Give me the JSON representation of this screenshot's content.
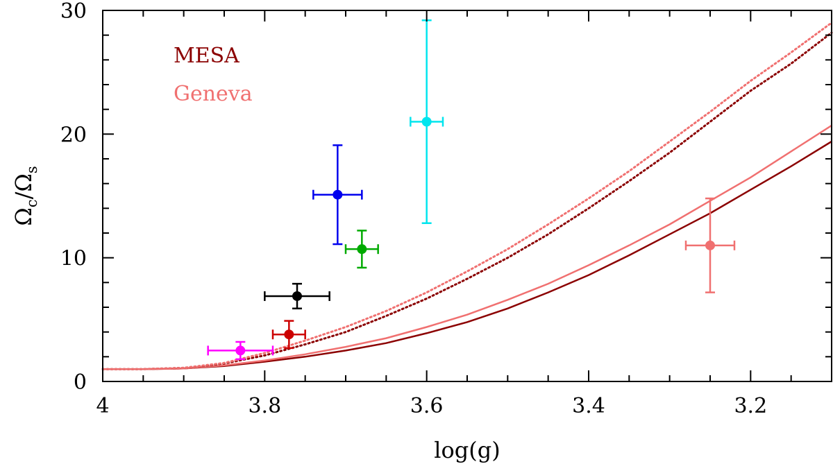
{
  "chart_data": {
    "type": "scatter",
    "title": "",
    "xlabel": "log(g)",
    "ylabel": {
      "base": "Ω",
      "sub1": "c",
      "slash": "/",
      "base2": "Ω",
      "sub2": "s"
    },
    "xlim": [
      4.0,
      3.1
    ],
    "ylim": [
      0,
      30
    ],
    "x_ticks": [
      4,
      3.8,
      3.6,
      3.4,
      3.2
    ],
    "x_tick_labels": [
      "4",
      "3.8",
      "3.6",
      "3.4",
      "3.2"
    ],
    "y_ticks": [
      0,
      10,
      20,
      30
    ],
    "y_tick_labels": [
      "0",
      "10",
      "20",
      "30"
    ],
    "legend": [
      {
        "name": "MESA",
        "color": "#8B0000"
      },
      {
        "name": "Geneva",
        "color": "#F07070"
      }
    ],
    "series": [
      {
        "name": "MESA",
        "style": "solid",
        "color": "#8B0000",
        "x": [
          4.0,
          3.95,
          3.9,
          3.85,
          3.8,
          3.75,
          3.7,
          3.65,
          3.6,
          3.55,
          3.5,
          3.45,
          3.4,
          3.35,
          3.3,
          3.25,
          3.2,
          3.15,
          3.1
        ],
        "y": [
          1.0,
          1.0,
          1.05,
          1.25,
          1.6,
          2.0,
          2.5,
          3.1,
          3.9,
          4.8,
          5.9,
          7.2,
          8.6,
          10.2,
          11.9,
          13.6,
          15.5,
          17.4,
          19.4
        ]
      },
      {
        "name": "Geneva",
        "style": "solid",
        "color": "#F07070",
        "x": [
          4.0,
          3.95,
          3.9,
          3.85,
          3.8,
          3.75,
          3.7,
          3.65,
          3.6,
          3.55,
          3.5,
          3.45,
          3.4,
          3.35,
          3.3,
          3.25,
          3.2,
          3.15,
          3.1
        ],
        "y": [
          1.0,
          1.0,
          1.05,
          1.3,
          1.7,
          2.2,
          2.8,
          3.5,
          4.4,
          5.4,
          6.6,
          7.9,
          9.4,
          11.0,
          12.7,
          14.6,
          16.5,
          18.6,
          20.7
        ]
      },
      {
        "name": "MESA (dotted)",
        "style": "dotted",
        "color": "#8B0000",
        "x": [
          4.0,
          3.95,
          3.9,
          3.85,
          3.8,
          3.75,
          3.7,
          3.65,
          3.6,
          3.55,
          3.5,
          3.45,
          3.4,
          3.35,
          3.3,
          3.25,
          3.2,
          3.15,
          3.1
        ],
        "y": [
          1.0,
          1.0,
          1.1,
          1.45,
          2.1,
          3.0,
          4.0,
          5.3,
          6.7,
          8.3,
          10.0,
          11.9,
          14.0,
          16.2,
          18.5,
          21.0,
          23.5,
          25.7,
          28.2
        ]
      },
      {
        "name": "Geneva (dotted)",
        "style": "dotted",
        "color": "#F07070",
        "x": [
          4.0,
          3.95,
          3.9,
          3.85,
          3.8,
          3.75,
          3.7,
          3.65,
          3.6,
          3.55,
          3.5,
          3.45,
          3.4,
          3.35,
          3.3,
          3.25,
          3.2,
          3.15,
          3.1
        ],
        "y": [
          1.0,
          1.0,
          1.1,
          1.5,
          2.3,
          3.3,
          4.4,
          5.7,
          7.2,
          8.9,
          10.7,
          12.7,
          14.8,
          17.0,
          19.4,
          21.8,
          24.3,
          26.6,
          29.0
        ]
      }
    ],
    "points": [
      {
        "x": 3.83,
        "y": 2.5,
        "xerr": 0.04,
        "yerr": 0.7,
        "color": "#FF00FF"
      },
      {
        "x": 3.77,
        "y": 3.8,
        "xerr": 0.02,
        "yerr": 1.1,
        "color": "#CC0000"
      },
      {
        "x": 3.76,
        "y": 6.9,
        "xerr": 0.04,
        "yerr": 1.0,
        "color": "#000000"
      },
      {
        "x": 3.71,
        "y": 15.1,
        "xerr": 0.03,
        "yerr": 4.0,
        "color": "#0000EE"
      },
      {
        "x": 3.68,
        "y": 10.7,
        "xerr": 0.02,
        "yerr": 1.5,
        "color": "#00AA00"
      },
      {
        "x": 3.6,
        "y": 21.0,
        "xerr": 0.02,
        "yerr": 8.2,
        "color": "#00E5EE"
      },
      {
        "x": 3.25,
        "y": 11.0,
        "xerr": 0.03,
        "yerr": 3.8,
        "color": "#F07070"
      }
    ]
  }
}
